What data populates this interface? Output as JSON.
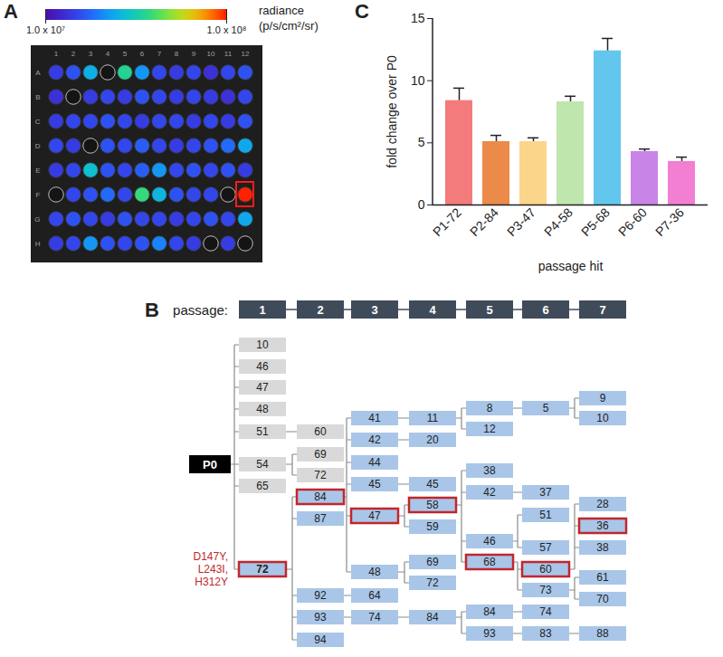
{
  "chart_data": [
    {
      "panel": "A",
      "type": "heatmap",
      "log": true,
      "rows": [
        "A",
        "B",
        "C",
        "D",
        "E",
        "F",
        "G",
        "H"
      ],
      "columns": [
        1,
        2,
        3,
        4,
        5,
        6,
        7,
        8,
        9,
        10,
        11,
        12
      ],
      "cells": [
        [
          14000000,
          16000000,
          25000000,
          null,
          35000000,
          22000000,
          15000000,
          14000000,
          15000000,
          13000000,
          15000000,
          16000000
        ],
        [
          13000000,
          null,
          14000000,
          15000000,
          14000000,
          16000000,
          15000000,
          14000000,
          15000000,
          14000000,
          13000000,
          15000000
        ],
        [
          14000000,
          15000000,
          15000000,
          16000000,
          15000000,
          14000000,
          15000000,
          15000000,
          14000000,
          15000000,
          14000000,
          16000000
        ],
        [
          15000000,
          14000000,
          null,
          16000000,
          15000000,
          17000000,
          15000000,
          14000000,
          15000000,
          16000000,
          18000000,
          24000000
        ],
        [
          14000000,
          15000000,
          28000000,
          16000000,
          15000000,
          17000000,
          22000000,
          15000000,
          16000000,
          15000000,
          16000000,
          14000000
        ],
        [
          null,
          15000000,
          16000000,
          18000000,
          15000000,
          38000000,
          26000000,
          16000000,
          15000000,
          15000000,
          null,
          100000000
        ],
        [
          15000000,
          16000000,
          15000000,
          14000000,
          16000000,
          15000000,
          15000000,
          14000000,
          15000000,
          16000000,
          15000000,
          24000000
        ],
        [
          14000000,
          15000000,
          22000000,
          16000000,
          15000000,
          16000000,
          20000000,
          15000000,
          14000000,
          null,
          14000000,
          null
        ]
      ],
      "highlight": {
        "row": "F",
        "column": 12
      },
      "colorbar": {
        "range": [
          10000000,
          100000000
        ],
        "ticks": [
          {
            "value": 10000000,
            "label": "1.0 x 10⁷"
          },
          {
            "value": 100000000,
            "label": "1.0 x 10⁸"
          }
        ],
        "label": "radiance",
        "unit": "(p/s/cm²/sr)"
      }
    },
    {
      "panel": "C",
      "type": "bar",
      "categories": [
        "P1-72",
        "P2-84",
        "P3-47",
        "P4-58",
        "P5-68",
        "P6-60",
        "P7-36"
      ],
      "values": [
        8.4,
        5.1,
        5.1,
        8.3,
        12.4,
        4.3,
        3.5
      ],
      "errors": [
        1.0,
        0.5,
        0.3,
        0.45,
        1.0,
        0.2,
        0.35
      ],
      "colors": [
        "#f47b7b",
        "#ec8a4a",
        "#fbd58a",
        "#bfe6ad",
        "#63c6ec",
        "#c984e8",
        "#f27fd2"
      ],
      "ylim": [
        0,
        15
      ],
      "yticks": [
        0,
        5,
        10,
        15
      ],
      "ylabel": "fold change over P0",
      "xlabel": "passage hit"
    }
  ],
  "diagram": {
    "panel": "B",
    "header_label": "passage:",
    "passages": [
      1,
      2,
      3,
      4,
      5,
      6,
      7
    ],
    "root": "P0",
    "nodes": [
      {
        "label": "10",
        "passage": 1,
        "parent": null,
        "color": "#d9d9d9"
      },
      {
        "label": "46",
        "passage": 1,
        "parent": null,
        "color": "#d9d9d9"
      },
      {
        "label": "47",
        "passage": 1,
        "parent": null,
        "color": "#d9d9d9"
      },
      {
        "label": "48",
        "passage": 1,
        "parent": null,
        "color": "#d9d9d9"
      },
      {
        "label": "51",
        "passage": 1,
        "parent": null,
        "color": "#d9d9d9"
      },
      {
        "label": "54",
        "passage": 1,
        "parent": null,
        "color": "#d9d9d9"
      },
      {
        "label": "65",
        "passage": 1,
        "parent": null,
        "color": "#d9d9d9"
      },
      {
        "label": "72",
        "passage": 1,
        "parent": null,
        "color": "#a9c6e8",
        "highlighted": true
      },
      {
        "label": "60",
        "passage": 2,
        "parent": 4,
        "color": "#d9d9d9"
      },
      {
        "label": "69",
        "passage": 2,
        "parent": 5,
        "color": "#d9d9d9"
      },
      {
        "label": "72",
        "passage": 2,
        "parent": 5,
        "color": "#d9d9d9"
      },
      {
        "label": "84",
        "passage": 2,
        "parent": 7,
        "color": "#a9c6e8",
        "highlighted": true
      },
      {
        "label": "87",
        "passage": 2,
        "parent": 7,
        "color": "#a9c6e8"
      },
      {
        "label": "92",
        "passage": 2,
        "parent": 7,
        "color": "#a9c6e8"
      },
      {
        "label": "93",
        "passage": 2,
        "parent": 7,
        "color": "#a9c6e8"
      },
      {
        "label": "94",
        "passage": 2,
        "parent": 7,
        "color": "#a9c6e8"
      },
      {
        "label": "41",
        "passage": 3,
        "parent": 11,
        "color": "#a9c6e8"
      },
      {
        "label": "42",
        "passage": 3,
        "parent": 11,
        "color": "#a9c6e8"
      },
      {
        "label": "44",
        "passage": 3,
        "parent": 11,
        "color": "#a9c6e8"
      },
      {
        "label": "45",
        "passage": 3,
        "parent": 11,
        "color": "#a9c6e8"
      },
      {
        "label": "47",
        "passage": 3,
        "parent": 11,
        "color": "#a9c6e8",
        "highlighted": true
      },
      {
        "label": "48",
        "passage": 3,
        "parent": 11,
        "color": "#a9c6e8"
      },
      {
        "label": "64",
        "passage": 3,
        "parent": 13,
        "color": "#a9c6e8"
      },
      {
        "label": "74",
        "passage": 3,
        "parent": 14,
        "color": "#a9c6e8"
      },
      {
        "label": "11",
        "passage": 4,
        "parent": 16,
        "color": "#a9c6e8"
      },
      {
        "label": "20",
        "passage": 4,
        "parent": 17,
        "color": "#a9c6e8"
      },
      {
        "label": "45",
        "passage": 4,
        "parent": 19,
        "color": "#a9c6e8"
      },
      {
        "label": "58",
        "passage": 4,
        "parent": 20,
        "color": "#a9c6e8",
        "highlighted": true
      },
      {
        "label": "59",
        "passage": 4,
        "parent": 20,
        "color": "#a9c6e8"
      },
      {
        "label": "69",
        "passage": 4,
        "parent": 21,
        "color": "#a9c6e8"
      },
      {
        "label": "72",
        "passage": 4,
        "parent": 21,
        "color": "#a9c6e8"
      },
      {
        "label": "84",
        "passage": 4,
        "parent": 23,
        "color": "#a9c6e8"
      },
      {
        "label": "8",
        "passage": 5,
        "parent": 24,
        "color": "#a9c6e8"
      },
      {
        "label": "12",
        "passage": 5,
        "parent": 24,
        "color": "#a9c6e8"
      },
      {
        "label": "38",
        "passage": 5,
        "parent": 27,
        "color": "#a9c6e8"
      },
      {
        "label": "42",
        "passage": 5,
        "parent": 27,
        "color": "#a9c6e8"
      },
      {
        "label": "46",
        "passage": 5,
        "parent": 27,
        "color": "#a9c6e8"
      },
      {
        "label": "68",
        "passage": 5,
        "parent": 27,
        "color": "#a9c6e8",
        "highlighted": true
      },
      {
        "label": "84",
        "passage": 5,
        "parent": 31,
        "color": "#a9c6e8"
      },
      {
        "label": "93",
        "passage": 5,
        "parent": 31,
        "color": "#a9c6e8"
      },
      {
        "label": "5",
        "passage": 6,
        "parent": 32,
        "color": "#a9c6e8"
      },
      {
        "label": "37",
        "passage": 6,
        "parent": 35,
        "color": "#a9c6e8"
      },
      {
        "label": "51",
        "passage": 6,
        "parent": 36,
        "color": "#a9c6e8"
      },
      {
        "label": "57",
        "passage": 6,
        "parent": 36,
        "color": "#a9c6e8"
      },
      {
        "label": "60",
        "passage": 6,
        "parent": 37,
        "color": "#a9c6e8",
        "highlighted": true
      },
      {
        "label": "73",
        "passage": 6,
        "parent": 37,
        "color": "#a9c6e8"
      },
      {
        "label": "74",
        "passage": 6,
        "parent": 38,
        "color": "#a9c6e8"
      },
      {
        "label": "83",
        "passage": 6,
        "parent": 39,
        "color": "#a9c6e8"
      },
      {
        "label": "9",
        "passage": 7,
        "parent": 40,
        "color": "#a9c6e8"
      },
      {
        "label": "10",
        "passage": 7,
        "parent": 40,
        "color": "#a9c6e8"
      },
      {
        "label": "28",
        "passage": 7,
        "parent": 44,
        "color": "#a9c6e8"
      },
      {
        "label": "36",
        "passage": 7,
        "parent": 44,
        "color": "#a9c6e8",
        "highlighted": true
      },
      {
        "label": "38",
        "passage": 7,
        "parent": 44,
        "color": "#a9c6e8"
      },
      {
        "label": "61",
        "passage": 7,
        "parent": 45,
        "color": "#a9c6e8"
      },
      {
        "label": "70",
        "passage": 7,
        "parent": 45,
        "color": "#a9c6e8"
      },
      {
        "label": "88",
        "passage": 7,
        "parent": 47,
        "color": "#a9c6e8"
      }
    ],
    "annotations": [
      {
        "node": 7,
        "text": [
          "D147Y,",
          "L243I,",
          "H312Y"
        ]
      }
    ]
  }
}
